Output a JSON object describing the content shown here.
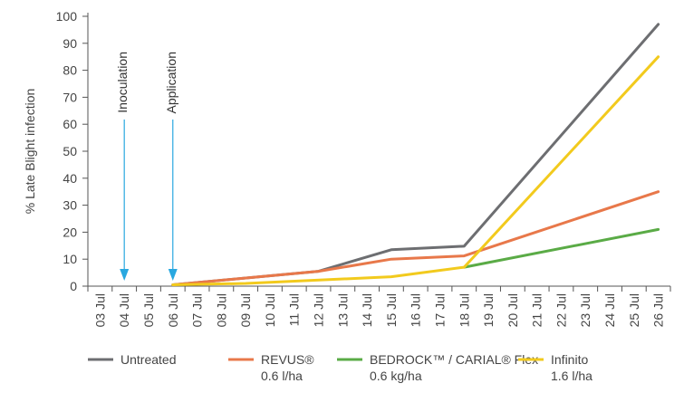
{
  "chart_data": {
    "type": "line",
    "title": "",
    "xlabel": "",
    "ylabel": "% Late Blight infection",
    "ylim": [
      0,
      100
    ],
    "yticks": [
      0,
      10,
      20,
      30,
      40,
      50,
      60,
      70,
      80,
      90,
      100
    ],
    "categories": [
      "03 Jul",
      "04 Jul",
      "05 Jul",
      "06 Jul",
      "07 Jul",
      "08 Jul",
      "09 Jul",
      "10 Jul",
      "11 Jul",
      "12 Jul",
      "13 Jul",
      "14 Jul",
      "15 Jul",
      "16 Jul",
      "17 Jul",
      "18 Jul",
      "19 Jul",
      "20 Jul",
      "21 Jul",
      "22 Jul",
      "23 Jul",
      "24 Jul",
      "25 Jul",
      "26 Jul"
    ],
    "grid": "none",
    "legend_position": "bottom",
    "series": [
      {
        "name": "Untreated",
        "color": "#6d6e71",
        "x": [
          "06 Jul",
          "12 Jul",
          "15 Jul",
          "18 Jul",
          "26 Jul"
        ],
        "values": [
          0.5,
          5.5,
          13.5,
          14.8,
          97
        ]
      },
      {
        "name": "REVUS®",
        "sub": "0.6 l/ha",
        "color": "#e8784a",
        "x": [
          "06 Jul",
          "12 Jul",
          "15 Jul",
          "18 Jul",
          "26 Jul"
        ],
        "values": [
          0.5,
          5.5,
          10,
          11.2,
          35
        ]
      },
      {
        "name": "BEDROCK™ / CARIAL® Flex",
        "sub": "0.6 kg/ha",
        "color": "#5aab46",
        "x": [
          "18 Jul",
          "26 Jul"
        ],
        "values": [
          7,
          21
        ]
      },
      {
        "name": "Infinito",
        "sub": "1.6 l/ha",
        "color": "#f2ca1d",
        "x": [
          "06 Jul",
          "09 Jul",
          "15 Jul",
          "18 Jul",
          "26 Jul"
        ],
        "values": [
          0.5,
          1,
          3.5,
          7,
          85
        ]
      }
    ],
    "annotations": [
      {
        "text": "Inoculation",
        "x": "04 Jul",
        "color": "#29a8e0"
      },
      {
        "text": "Application",
        "x": "06 Jul",
        "color": "#29a8e0"
      }
    ]
  }
}
